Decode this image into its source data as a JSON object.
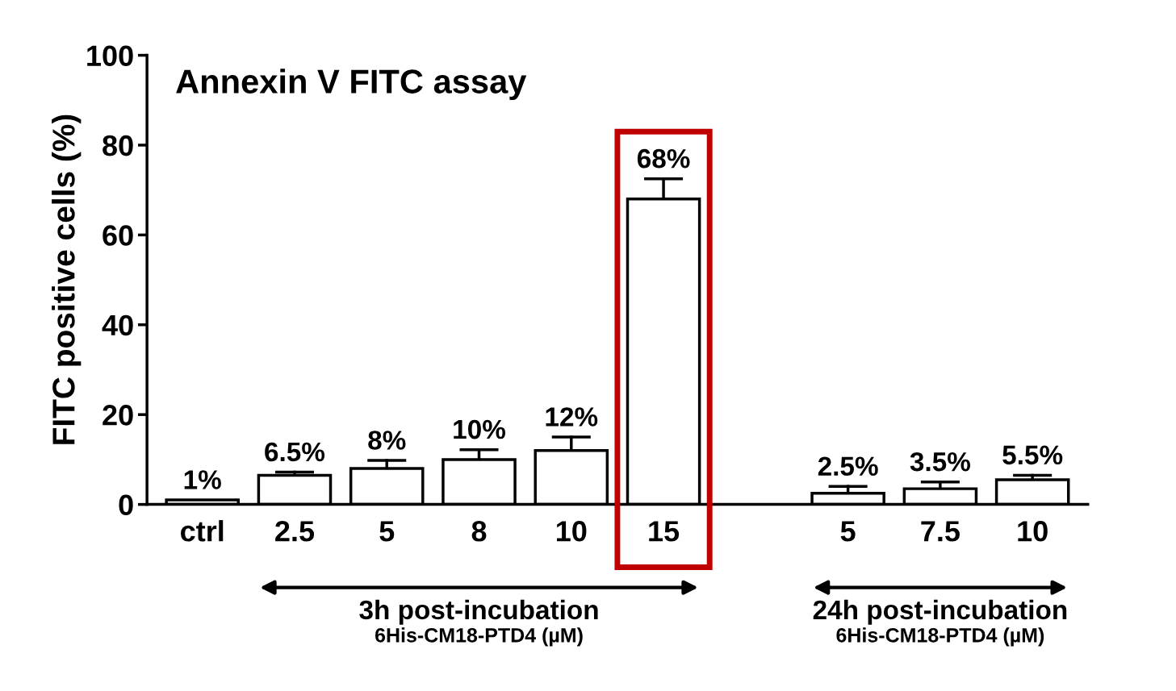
{
  "chart_data": {
    "type": "bar",
    "title": "Annexin V FITC assay",
    "ylabel": "FITC positive cells (%)",
    "categories": [
      "ctrl",
      "2.5",
      "5",
      "8",
      "10",
      "15",
      null,
      "5",
      "7.5",
      "10"
    ],
    "values": [
      1,
      6.5,
      8,
      10,
      12,
      68,
      null,
      2.5,
      3.5,
      5.5
    ],
    "errors": [
      null,
      [
        6.5,
        7.2
      ],
      [
        8,
        9.8
      ],
      [
        10,
        12.2
      ],
      [
        12,
        15
      ],
      [
        68,
        72.5
      ],
      null,
      [
        2.5,
        4
      ],
      [
        3.5,
        5
      ],
      [
        5.5,
        6.5
      ]
    ],
    "value_labels": [
      "1%",
      "6.5%",
      "8%",
      "10%",
      "12%",
      "68%",
      null,
      "2.5%",
      "3.5%",
      "5.5%"
    ],
    "color": "#ffffff",
    "ylim": [
      0,
      100
    ],
    "yticks": [
      0,
      20,
      40,
      60,
      80,
      100
    ],
    "grid": false,
    "annotations": [
      "3h post-incubation",
      "6His-CM18-PTD4 (µM)",
      "24h post-incubation",
      "6His-CM18-PTD4 (µM)"
    ]
  }
}
